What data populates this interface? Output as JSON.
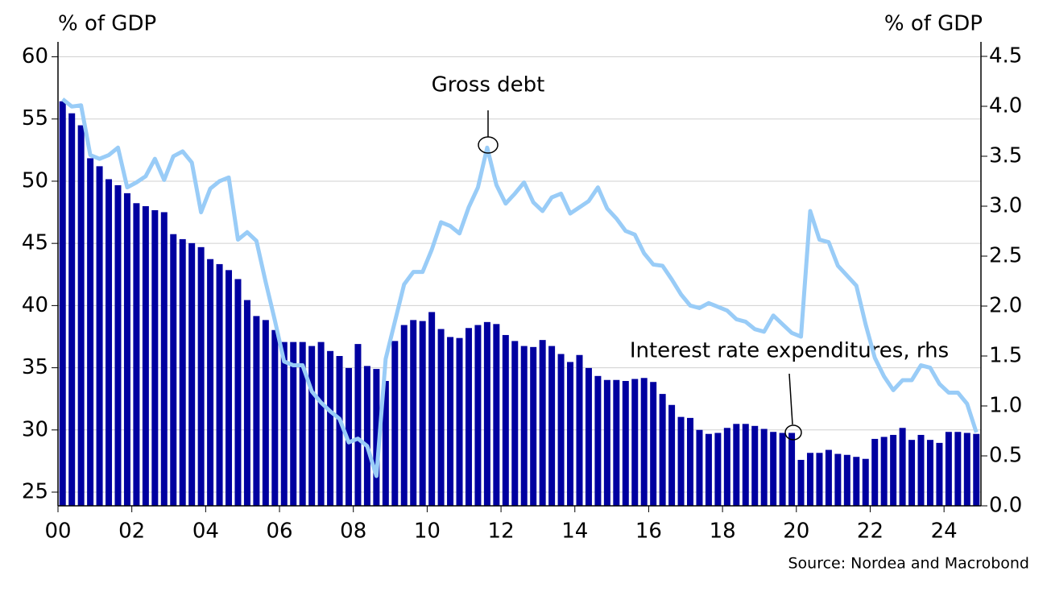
{
  "chart_data": {
    "type": "bar-line",
    "ylabel": "% of GDP",
    "y2label": "% of GDP",
    "annotations": [
      "Gross debt",
      "Interest rate expenditures, rhs"
    ],
    "source": "Source: Nordea and Macrobond",
    "xlim": [
      2000,
      2025
    ],
    "xticks": [
      {
        "value": 2000,
        "label": "00"
      },
      {
        "value": 2002,
        "label": "02"
      },
      {
        "value": 2004,
        "label": "04"
      },
      {
        "value": 2006,
        "label": "06"
      },
      {
        "value": 2008,
        "label": "08"
      },
      {
        "value": 2010,
        "label": "10"
      },
      {
        "value": 2012,
        "label": "12"
      },
      {
        "value": 2014,
        "label": "14"
      },
      {
        "value": 2016,
        "label": "16"
      },
      {
        "value": 2018,
        "label": "18"
      },
      {
        "value": 2020,
        "label": "20"
      },
      {
        "value": 2022,
        "label": "22"
      },
      {
        "value": 2024,
        "label": "24"
      }
    ],
    "ylim": [
      23.9,
      61.2
    ],
    "yticks": [
      25,
      30,
      35,
      40,
      45,
      50,
      55,
      60
    ],
    "y2lim": [
      0,
      4.645
    ],
    "y2ticks": [
      {
        "value": 0,
        "label": "0.0"
      },
      {
        "value": 0.5,
        "label": "0.5"
      },
      {
        "value": 1,
        "label": "1.0"
      },
      {
        "value": 1.5,
        "label": "1.5"
      },
      {
        "value": 2,
        "label": "2.0"
      },
      {
        "value": 2.5,
        "label": "2.5"
      },
      {
        "value": 3,
        "label": "3.0"
      },
      {
        "value": 3.5,
        "label": "3.5"
      },
      {
        "value": 4,
        "label": "4.0"
      },
      {
        "value": 4.5,
        "label": "4.5"
      }
    ],
    "grid": true,
    "x": [
      2000.125,
      2000.375,
      2000.625,
      2000.875,
      2001.125,
      2001.375,
      2001.625,
      2001.875,
      2002.125,
      2002.375,
      2002.625,
      2002.875,
      2003.125,
      2003.375,
      2003.625,
      2003.875,
      2004.125,
      2004.375,
      2004.625,
      2004.875,
      2005.125,
      2005.375,
      2005.625,
      2005.875,
      2006.125,
      2006.375,
      2006.625,
      2006.875,
      2007.125,
      2007.375,
      2007.625,
      2007.875,
      2008.125,
      2008.375,
      2008.625,
      2008.875,
      2009.125,
      2009.375,
      2009.625,
      2009.875,
      2010.125,
      2010.375,
      2010.625,
      2010.875,
      2011.125,
      2011.375,
      2011.625,
      2011.875,
      2012.125,
      2012.375,
      2012.625,
      2012.875,
      2013.125,
      2013.375,
      2013.625,
      2013.875,
      2014.125,
      2014.375,
      2014.625,
      2014.875,
      2015.125,
      2015.375,
      2015.625,
      2015.875,
      2016.125,
      2016.375,
      2016.625,
      2016.875,
      2017.125,
      2017.375,
      2017.625,
      2017.875,
      2018.125,
      2018.375,
      2018.625,
      2018.875,
      2019.125,
      2019.375,
      2019.625,
      2019.875,
      2020.125,
      2020.375,
      2020.625,
      2020.875,
      2021.125,
      2021.375,
      2021.625,
      2021.875,
      2022.125,
      2022.375,
      2022.625,
      2022.875,
      2023.125,
      2023.375,
      2023.625,
      2023.875,
      2024.125,
      2024.375,
      2024.625,
      2024.875
    ],
    "series": [
      {
        "name": "Interest rate expenditures, rhs",
        "kind": "bar",
        "axis": "y2",
        "color": "#0000a0",
        "values": [
          4.05,
          3.93,
          3.81,
          3.48,
          3.4,
          3.27,
          3.21,
          3.13,
          3.03,
          3.0,
          2.96,
          2.94,
          2.72,
          2.67,
          2.63,
          2.59,
          2.47,
          2.42,
          2.36,
          2.27,
          2.06,
          1.9,
          1.86,
          1.76,
          1.64,
          1.64,
          1.64,
          1.6,
          1.64,
          1.55,
          1.5,
          1.38,
          1.62,
          1.4,
          1.37,
          1.25,
          1.65,
          1.81,
          1.86,
          1.85,
          1.94,
          1.77,
          1.69,
          1.68,
          1.78,
          1.81,
          1.84,
          1.82,
          1.71,
          1.65,
          1.6,
          1.59,
          1.66,
          1.6,
          1.52,
          1.44,
          1.51,
          1.38,
          1.3,
          1.26,
          1.26,
          1.25,
          1.27,
          1.28,
          1.24,
          1.12,
          1.01,
          0.89,
          0.88,
          0.76,
          0.72,
          0.73,
          0.78,
          0.82,
          0.82,
          0.8,
          0.77,
          0.74,
          0.73,
          0.73,
          0.46,
          0.53,
          0.53,
          0.56,
          0.52,
          0.51,
          0.49,
          0.47,
          0.67,
          0.69,
          0.71,
          0.78,
          0.66,
          0.71,
          0.66,
          0.63,
          0.74,
          0.74,
          0.73,
          0.72
        ]
      },
      {
        "name": "Gross debt",
        "kind": "line",
        "color": "#99ccf7",
        "values": [
          56.6,
          56.0,
          56.1,
          52.1,
          51.8,
          52.1,
          52.7,
          49.5,
          49.9,
          50.4,
          51.8,
          50.1,
          52.0,
          52.4,
          51.5,
          47.5,
          49.4,
          50.0,
          50.3,
          45.3,
          45.9,
          45.2,
          41.9,
          38.8,
          35.5,
          35.2,
          35.2,
          33.1,
          32.2,
          31.5,
          30.9,
          29.0,
          29.3,
          28.7,
          26.3,
          35.7,
          38.7,
          41.7,
          42.7,
          42.7,
          44.5,
          46.7,
          46.4,
          45.8,
          47.9,
          49.5,
          52.7,
          49.7,
          48.2,
          49.0,
          49.9,
          48.3,
          47.6,
          48.7,
          49.0,
          47.4,
          47.9,
          48.4,
          49.5,
          47.8,
          47.0,
          46.0,
          45.7,
          44.2,
          43.3,
          43.2,
          42.1,
          40.9,
          40.0,
          39.8,
          40.2,
          39.9,
          39.6,
          38.9,
          38.7,
          38.1,
          37.9,
          39.2,
          38.5,
          37.8,
          37.5,
          47.6,
          45.3,
          45.1,
          43.2,
          42.4,
          41.6,
          38.5,
          35.8,
          34.3,
          33.2,
          34.0,
          34.0,
          35.2,
          35.0,
          33.7,
          33.0,
          33.0,
          32.1,
          29.8
        ]
      }
    ]
  }
}
